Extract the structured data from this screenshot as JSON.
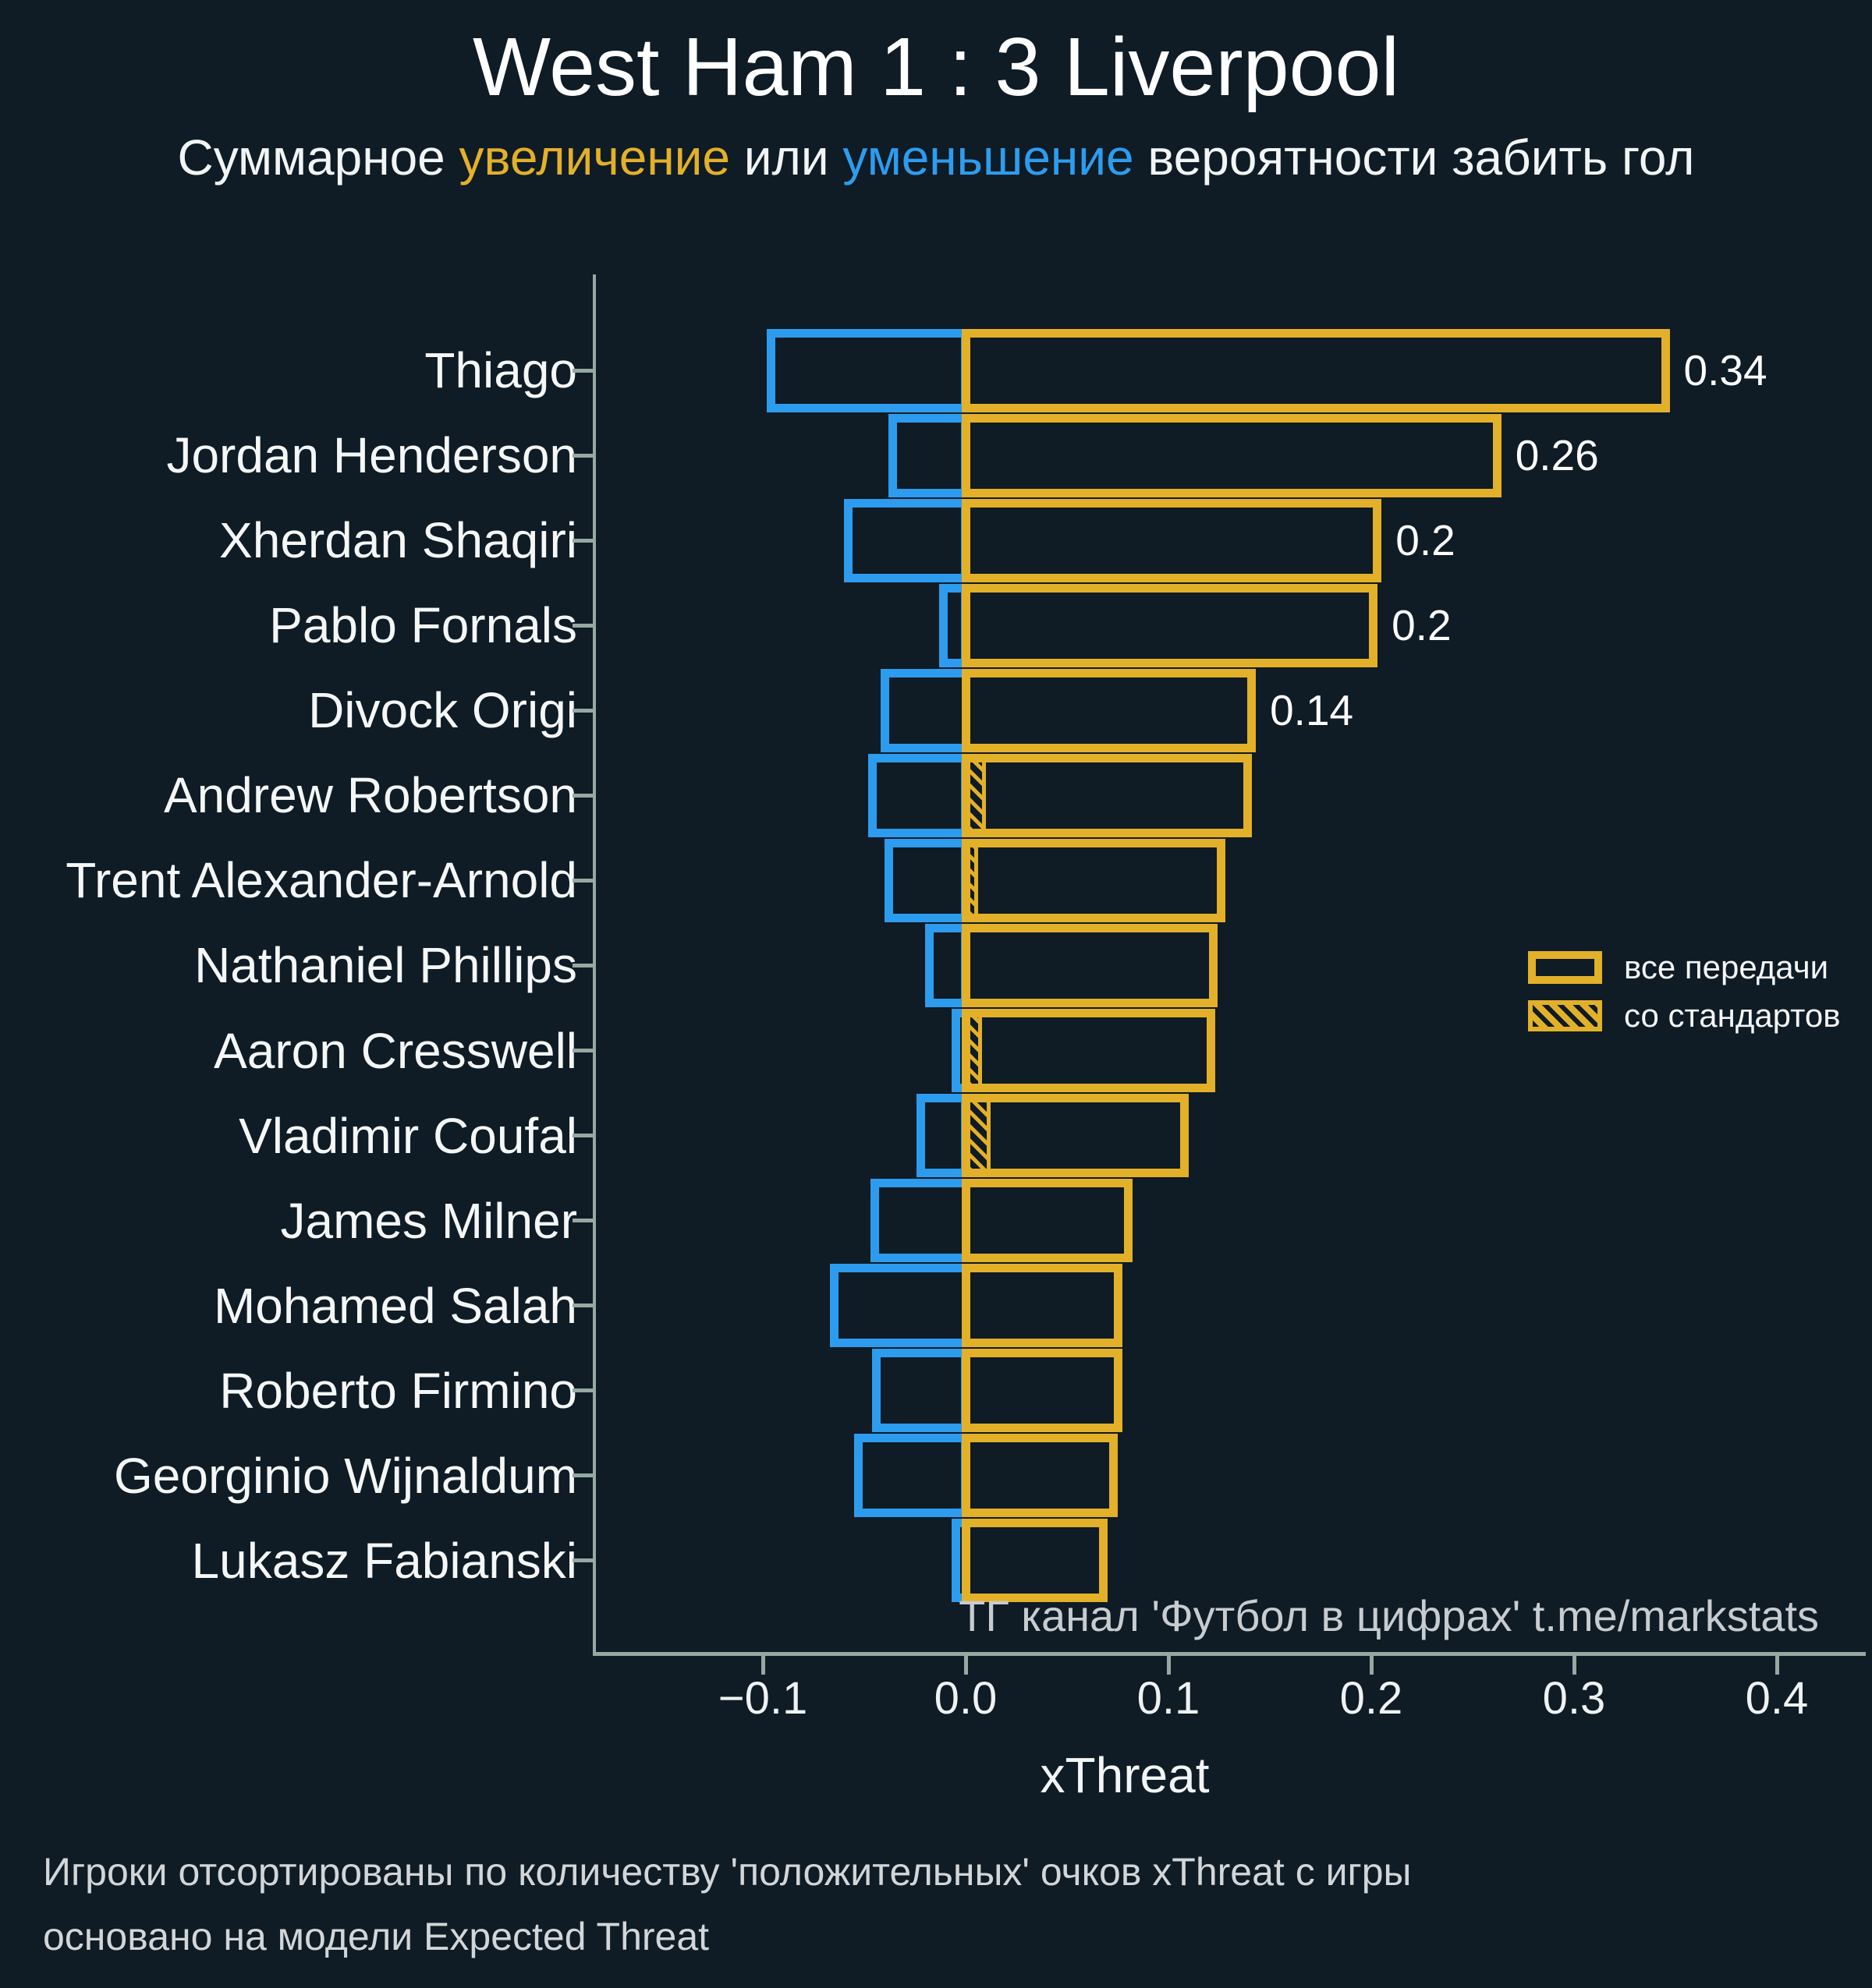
{
  "header": {
    "title": "West Ham 1 : 3 Liverpool",
    "subtitle_prefix": "Суммарное ",
    "subtitle_increase": "увеличение",
    "subtitle_middle": " или ",
    "subtitle_decrease": "уменьшение",
    "subtitle_suffix": " вероятности забить гол"
  },
  "legend": {
    "all_passes": "все передачи",
    "set_pieces": "со стандартов"
  },
  "watermark": "ТГ канал 'Футбол в цифрах'  t.me/markstats",
  "footnotes": [
    "Игроки отсортированы по количеству 'положительных' очков xThreat с игры",
    "основано на модели Expected Threat"
  ],
  "colors": {
    "background": "#0f1b25",
    "positive": "#e3b02a",
    "negative": "#2d9cee",
    "axis": "#95a8a2",
    "text": "#f5f7f7",
    "muted": "#c7ccd0"
  },
  "chart_data": {
    "type": "bar",
    "orientation": "horizontal",
    "title": "West Ham 1 : 3 Liverpool",
    "xlabel": "xThreat",
    "xlim": [
      -0.183,
      0.444
    ],
    "grid": false,
    "legend_position": "center-right",
    "x_ticks": [
      {
        "value": -0.1,
        "label": "−0.1"
      },
      {
        "value": 0.0,
        "label": "0.0"
      },
      {
        "value": 0.1,
        "label": "0.1"
      },
      {
        "value": 0.2,
        "label": "0.2"
      },
      {
        "value": 0.3,
        "label": "0.3"
      },
      {
        "value": 0.4,
        "label": "0.4"
      }
    ],
    "series_meaning": {
      "positive": "суммарное увеличение вероятности забить гол (все передачи)",
      "negative": "суммарное уменьшение вероятности забить гол",
      "set_piece": "вклад со стандартов"
    },
    "players": [
      {
        "name": "Thiago",
        "positive": 0.345,
        "negative": -0.096,
        "set_piece": 0,
        "label": "0.34"
      },
      {
        "name": "Jordan Henderson",
        "positive": 0.262,
        "negative": -0.036,
        "set_piece": 0,
        "label": "0.26"
      },
      {
        "name": "Xherdan Shaqiri",
        "positive": 0.203,
        "negative": -0.058,
        "set_piece": 0,
        "label": "0.2"
      },
      {
        "name": "Pablo Fornals",
        "positive": 0.201,
        "negative": -0.011,
        "set_piece": 0,
        "label": "0.2"
      },
      {
        "name": "Divock Origi",
        "positive": 0.141,
        "negative": -0.04,
        "set_piece": 0,
        "label": "0.14"
      },
      {
        "name": "Andrew Robertson",
        "positive": 0.139,
        "negative": -0.046,
        "set_piece": 0.009,
        "label": null
      },
      {
        "name": "Trent Alexander-Arnold",
        "positive": 0.126,
        "negative": -0.038,
        "set_piece": 0.005,
        "label": null
      },
      {
        "name": "Nathaniel Phillips",
        "positive": 0.122,
        "negative": -0.018,
        "set_piece": 0,
        "label": null
      },
      {
        "name": "Aaron Cresswell",
        "positive": 0.121,
        "negative": -0.005,
        "set_piece": 0.007,
        "label": null
      },
      {
        "name": "Vladimir Coufal",
        "positive": 0.108,
        "negative": -0.022,
        "set_piece": 0.011,
        "label": null
      },
      {
        "name": "James Milner",
        "positive": 0.08,
        "negative": -0.045,
        "set_piece": 0,
        "label": null
      },
      {
        "name": "Mohamed Salah",
        "positive": 0.075,
        "negative": -0.065,
        "set_piece": 0,
        "label": null
      },
      {
        "name": "Roberto Firmino",
        "positive": 0.075,
        "negative": -0.044,
        "set_piece": 0,
        "label": null
      },
      {
        "name": "Georginio Wijnaldum",
        "positive": 0.073,
        "negative": -0.053,
        "set_piece": 0,
        "label": null
      },
      {
        "name": "Lukasz Fabianski",
        "positive": 0.068,
        "negative": -0.005,
        "set_piece": 0,
        "label": null
      }
    ]
  }
}
